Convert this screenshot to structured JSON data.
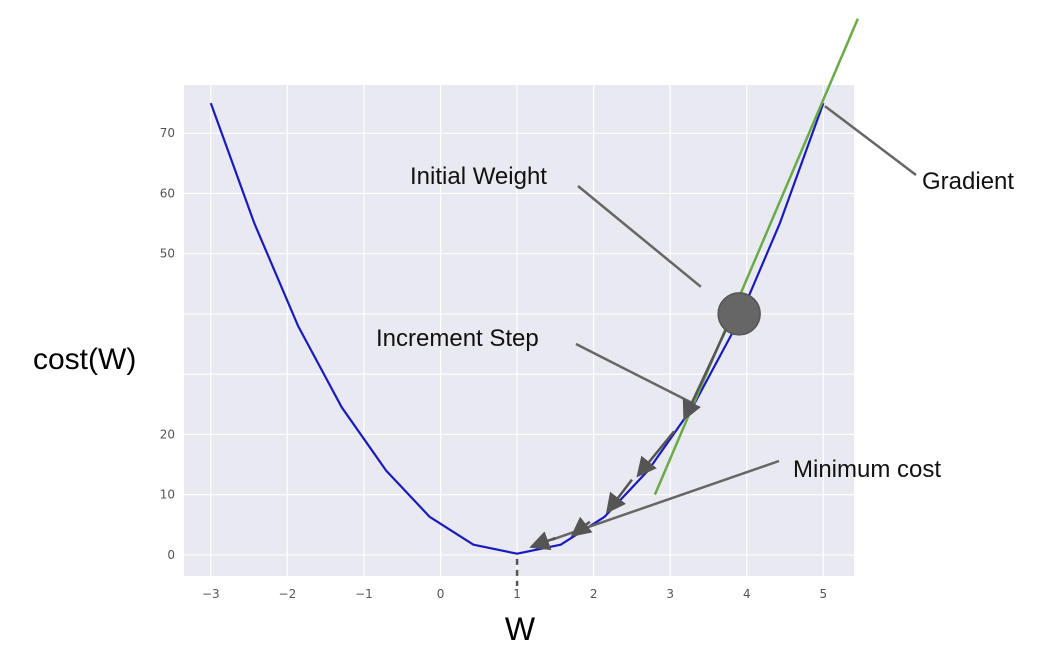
{
  "chart_data": {
    "type": "line",
    "title": "",
    "xlabel": "W",
    "ylabel": "cost(W)",
    "xlim": [
      -3.35,
      5.4
    ],
    "ylim": [
      -3.5,
      78
    ],
    "grid": true,
    "xticks": [
      -3,
      -2,
      -1,
      0,
      1,
      2,
      3,
      4,
      5
    ],
    "x_tick_labels": [
      "−3",
      "−2",
      "−1",
      "0",
      "1",
      "2",
      "3",
      "4",
      "5"
    ],
    "yticks": [
      0,
      10,
      20,
      30,
      40,
      50,
      60,
      70
    ],
    "y_tick_labels": [
      "0",
      "10",
      "20",
      "",
      "",
      "50",
      "60",
      "70"
    ],
    "series": [
      {
        "x": [
          -3,
          -2.43,
          -1.86,
          -1.29,
          -0.71,
          -0.14,
          0.43,
          1,
          1.57,
          2.14,
          2.71,
          3.29,
          3.86,
          4.43,
          5
        ],
        "y": [
          75,
          55,
          38,
          24.5,
          14,
          6.3,
          1.7,
          0.2,
          1.7,
          6.3,
          14,
          24.5,
          38,
          55,
          75
        ],
        "color": "#1b1bbd"
      }
    ],
    "gradient_line": {
      "x": [
        2.8,
        5.45
      ],
      "y": [
        10,
        89
      ],
      "color": "#6aaa48"
    },
    "initial_weight_point": {
      "x": 3.9,
      "y": 40,
      "color": "#666666"
    },
    "descent_arrows": [
      {
        "from": [
          3.75,
          38
        ],
        "to": [
          3.2,
          23
        ]
      },
      {
        "from": [
          3.05,
          20.5
        ],
        "to": [
          2.6,
          13.5
        ]
      },
      {
        "from": [
          2.5,
          12.5
        ],
        "to": [
          2.2,
          7.5
        ]
      },
      {
        "from": [
          1.95,
          5.5
        ],
        "to": [
          1.75,
          3.5
        ]
      },
      {
        "from": [
          1.5,
          2.8
        ],
        "to": [
          1.22,
          1.5
        ]
      }
    ],
    "minimum_marker": {
      "x": 1,
      "y": 0
    },
    "annotations": [
      {
        "text": "Initial Weight"
      },
      {
        "text": "Increment Step"
      },
      {
        "text": "Gradient"
      },
      {
        "text": "Minimum cost"
      }
    ]
  }
}
